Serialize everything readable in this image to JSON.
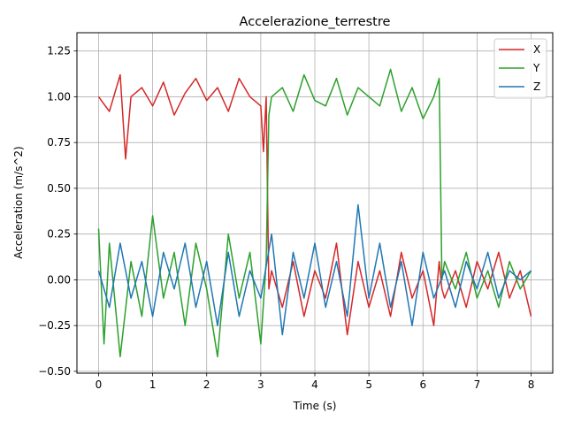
{
  "chart_data": {
    "type": "line",
    "title": "Accelerazione_terrestre",
    "xlabel": "Time (s)",
    "ylabel": "Acceleration (m/s^2)",
    "xlim": [
      -0.4,
      8.4
    ],
    "ylim": [
      -0.51,
      1.35
    ],
    "xticks": [
      0,
      1,
      2,
      3,
      4,
      5,
      6,
      7,
      8
    ],
    "xtick_labels": [
      "0",
      "1",
      "2",
      "3",
      "4",
      "5",
      "6",
      "7",
      "8"
    ],
    "yticks": [
      -0.5,
      -0.25,
      0.0,
      0.25,
      0.5,
      0.75,
      1.0,
      1.25
    ],
    "ytick_labels": [
      "−0.50",
      "−0.25",
      "0.00",
      "0.25",
      "0.50",
      "0.75",
      "1.00",
      "1.25"
    ],
    "grid": true,
    "legend": "top-right",
    "series": [
      {
        "name": "X",
        "color": "#d62728",
        "x": [
          0,
          0.2,
          0.4,
          0.5,
          0.6,
          0.8,
          1.0,
          1.2,
          1.4,
          1.6,
          1.8,
          2.0,
          2.2,
          2.4,
          2.6,
          2.8,
          3.0,
          3.05,
          3.1,
          3.15,
          3.2,
          3.4,
          3.6,
          3.8,
          4.0,
          4.2,
          4.4,
          4.6,
          4.8,
          5.0,
          5.2,
          5.4,
          5.6,
          5.8,
          6.0,
          6.2,
          6.3,
          6.35,
          6.4,
          6.6,
          6.8,
          7.0,
          7.2,
          7.4,
          7.6,
          7.8,
          8.0
        ],
        "y": [
          1.0,
          0.92,
          1.12,
          0.66,
          1.0,
          1.05,
          0.95,
          1.08,
          0.9,
          1.02,
          1.1,
          0.98,
          1.05,
          0.92,
          1.1,
          1.0,
          0.95,
          0.7,
          1.0,
          -0.05,
          0.05,
          -0.15,
          0.1,
          -0.2,
          0.05,
          -0.1,
          0.2,
          -0.3,
          0.1,
          -0.15,
          0.05,
          -0.2,
          0.15,
          -0.1,
          0.05,
          -0.25,
          0.1,
          -0.05,
          -0.1,
          0.05,
          -0.15,
          0.1,
          -0.05,
          0.15,
          -0.1,
          0.05,
          -0.2
        ]
      },
      {
        "name": "Y",
        "color": "#2ca02c",
        "x": [
          0,
          0.1,
          0.2,
          0.4,
          0.6,
          0.8,
          1.0,
          1.2,
          1.4,
          1.6,
          1.8,
          2.0,
          2.2,
          2.4,
          2.6,
          2.8,
          3.0,
          3.1,
          3.15,
          3.2,
          3.4,
          3.6,
          3.8,
          4.0,
          4.2,
          4.4,
          4.6,
          4.8,
          5.0,
          5.2,
          5.4,
          5.6,
          5.8,
          6.0,
          6.2,
          6.3,
          6.35,
          6.4,
          6.6,
          6.8,
          7.0,
          7.2,
          7.4,
          7.6,
          7.8,
          8.0
        ],
        "y": [
          0.28,
          -0.35,
          0.2,
          -0.42,
          0.1,
          -0.2,
          0.35,
          -0.1,
          0.15,
          -0.25,
          0.2,
          -0.05,
          -0.42,
          0.25,
          -0.1,
          0.15,
          -0.35,
          0.1,
          0.9,
          1.0,
          1.05,
          0.92,
          1.12,
          0.98,
          0.95,
          1.1,
          0.9,
          1.05,
          1.0,
          0.95,
          1.15,
          0.92,
          1.05,
          0.88,
          1.0,
          1.1,
          0.0,
          0.1,
          -0.05,
          0.15,
          -0.1,
          0.05,
          -0.15,
          0.1,
          -0.05,
          0.05
        ]
      },
      {
        "name": "Z",
        "color": "#1f77b4",
        "x": [
          0,
          0.2,
          0.4,
          0.6,
          0.8,
          1.0,
          1.2,
          1.4,
          1.6,
          1.8,
          2.0,
          2.2,
          2.4,
          2.6,
          2.8,
          3.0,
          3.2,
          3.4,
          3.6,
          3.8,
          4.0,
          4.2,
          4.4,
          4.6,
          4.8,
          5.0,
          5.2,
          5.4,
          5.6,
          5.8,
          6.0,
          6.2,
          6.4,
          6.6,
          6.8,
          7.0,
          7.2,
          7.4,
          7.6,
          7.8,
          8.0
        ],
        "y": [
          0.05,
          -0.15,
          0.2,
          -0.1,
          0.1,
          -0.2,
          0.15,
          -0.05,
          0.2,
          -0.15,
          0.1,
          -0.25,
          0.15,
          -0.2,
          0.05,
          -0.1,
          0.25,
          -0.3,
          0.15,
          -0.1,
          0.2,
          -0.15,
          0.1,
          -0.2,
          0.41,
          -0.1,
          0.2,
          -0.15,
          0.1,
          -0.25,
          0.15,
          -0.1,
          0.05,
          -0.15,
          0.1,
          -0.05,
          0.15,
          -0.1,
          0.05,
          0.0,
          0.05
        ]
      }
    ]
  }
}
